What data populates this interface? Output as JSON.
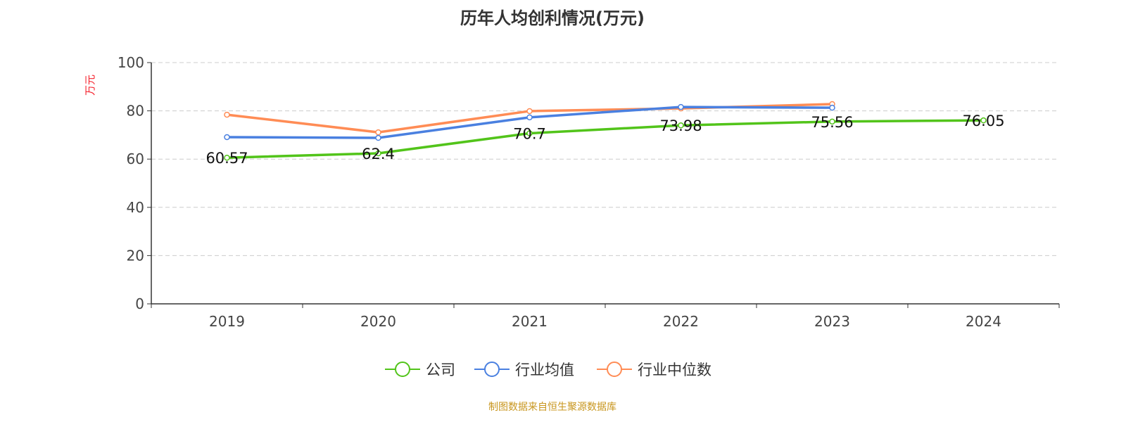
{
  "chart_data": {
    "type": "line",
    "title": "历年人均创利情况(万元)",
    "ylabel": "万元",
    "ylim": [
      0,
      100
    ],
    "yticks": [
      0,
      20,
      40,
      60,
      80,
      100
    ],
    "grid": true,
    "legend_position": "bottom",
    "categories": [
      "2019",
      "2020",
      "2021",
      "2022",
      "2023",
      "2024"
    ],
    "series": [
      {
        "name": "公司",
        "color": "#52c41a",
        "values": [
          60.57,
          62.4,
          70.7,
          73.98,
          75.56,
          76.05
        ],
        "labels": [
          "60.57",
          "62.4",
          "70.7",
          "73.98",
          "75.56",
          "76.05"
        ]
      },
      {
        "name": "行业均值",
        "color": "#4a80e0",
        "values": [
          69.1,
          68.8,
          77.3,
          81.6,
          81.3,
          null
        ]
      },
      {
        "name": "行业中位数",
        "color": "#ff8c55",
        "values": [
          78.4,
          71.1,
          79.9,
          81.0,
          82.8,
          null
        ]
      }
    ]
  },
  "source": "制图数据来自恒生聚源数据库"
}
